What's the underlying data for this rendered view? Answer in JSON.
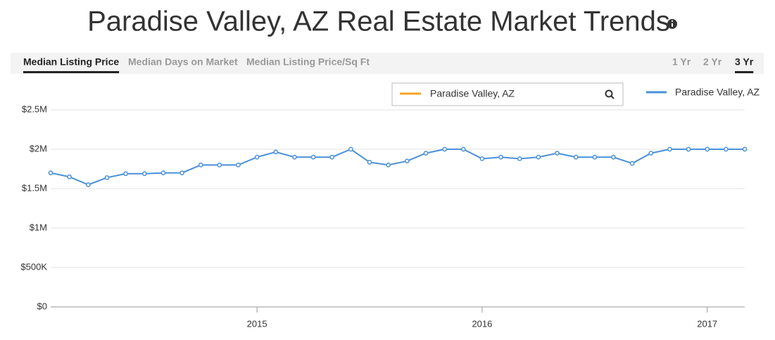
{
  "header": {
    "title": "Paradise Valley, AZ Real Estate Market Trends"
  },
  "tabs": {
    "items": [
      "Median Listing Price",
      "Median Days on Market",
      "Median Listing Price/Sq Ft"
    ],
    "active": 0
  },
  "ranges": {
    "items": [
      "1 Yr",
      "2 Yr",
      "3 Yr"
    ],
    "active": 2
  },
  "search": {
    "label": "Paradise Valley, AZ",
    "color": "#f5a623"
  },
  "chart_data": {
    "type": "line",
    "categories": [
      null,
      null,
      null,
      null,
      null,
      null,
      null,
      null,
      null,
      null,
      null,
      "2015",
      null,
      null,
      null,
      null,
      null,
      null,
      null,
      null,
      null,
      null,
      null,
      "2016",
      null,
      null,
      null,
      null,
      null,
      null,
      null,
      null,
      null,
      null,
      null,
      "2017",
      null,
      null
    ],
    "series": [
      {
        "name": "Paradise Valley, AZ",
        "color": "#4a90d9",
        "values": [
          1700000,
          1650000,
          1550000,
          1640000,
          1690000,
          1690000,
          1700000,
          1700000,
          1800000,
          1800000,
          1800000,
          1900000,
          1965000,
          1900000,
          1900000,
          1900000,
          2000000,
          1835000,
          1800000,
          1850000,
          1950000,
          2000000,
          2000000,
          1880000,
          1900000,
          1880000,
          1900000,
          1950000,
          1900000,
          1900000,
          1900000,
          1820000,
          1950000,
          2000000,
          2000000,
          2000000,
          2000000,
          2000000
        ]
      }
    ],
    "ylim": [
      0,
      2500000
    ],
    "yticks": [
      {
        "value": 0,
        "label": "$0"
      },
      {
        "value": 500000,
        "label": "$500K"
      },
      {
        "value": 1000000,
        "label": "$1M"
      },
      {
        "value": 1500000,
        "label": "$1.5M"
      },
      {
        "value": 2000000,
        "label": "$2M"
      },
      {
        "value": 2500000,
        "label": "$2.5M"
      }
    ],
    "grid": true,
    "legend": "top-right"
  }
}
